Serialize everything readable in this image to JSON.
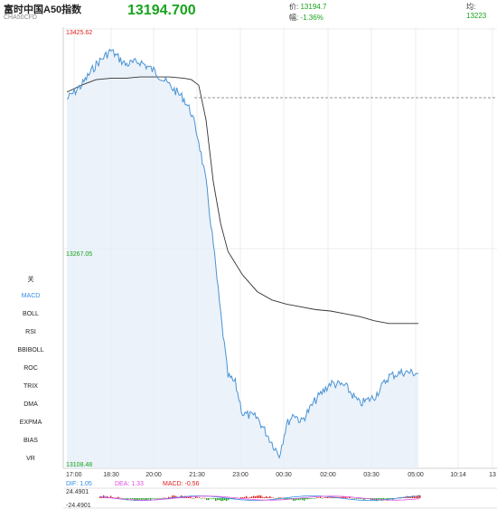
{
  "header": {
    "title": "富时中国A50指数",
    "code": "CHA50CFD",
    "last_price": "13194.700",
    "price_label": "价:",
    "price_value": "13194.7",
    "change_label": "幅:",
    "change_value": "-1.36%",
    "avg_label": "均:",
    "avg_value": "13223"
  },
  "colors": {
    "price_line": "#4a93d4",
    "avg_line": "#333333",
    "up": "#18a31d",
    "down": "#e02020",
    "dif": "#2f8de4",
    "dea": "#e04fe0"
  },
  "indicators": {
    "items": [
      {
        "label": "关",
        "active": false
      },
      {
        "label": "MACD",
        "active": true
      },
      {
        "label": "BOLL",
        "active": false
      },
      {
        "label": "RSI",
        "active": false
      },
      {
        "label": "BBIBOLL",
        "active": false
      },
      {
        "label": "ROC",
        "active": false
      },
      {
        "label": "TRIX",
        "active": false
      },
      {
        "label": "DMA",
        "active": false
      },
      {
        "label": "EXPMA",
        "active": false
      },
      {
        "label": "BIAS",
        "active": false
      },
      {
        "label": "VR",
        "active": false
      }
    ]
  },
  "chart_data": {
    "type": "line",
    "title": "",
    "y_ticks": [
      "13425.62",
      "13267.05",
      "13108.48"
    ],
    "ylim": [
      13108.48,
      13425.62
    ],
    "prev_close": 13376,
    "x_ticks": [
      "17:00",
      "18:30",
      "20:00",
      "21:30",
      "23:00",
      "00:30",
      "02:00",
      "03:30",
      "05:00",
      "10:14",
      "13"
    ],
    "series": [
      {
        "key": "price",
        "x": [
          "17:00",
          "17:30",
          "18:00",
          "18:30",
          "19:00",
          "19:30",
          "20:00",
          "20:30",
          "21:00",
          "21:15",
          "21:30",
          "21:45",
          "22:00",
          "22:15",
          "22:30",
          "22:45",
          "23:00",
          "23:30",
          "00:00",
          "00:15",
          "00:30",
          "00:45",
          "01:00",
          "01:30",
          "02:00",
          "02:30",
          "03:00",
          "03:30",
          "04:00",
          "04:30",
          "05:00"
        ],
        "values": [
          13375,
          13385,
          13400,
          13410,
          13400,
          13402,
          13395,
          13385,
          13375,
          13365,
          13345,
          13315,
          13270,
          13220,
          13175,
          13170,
          13148,
          13145,
          13127,
          13118,
          13140,
          13148,
          13142,
          13158,
          13170,
          13168,
          13155,
          13160,
          13175,
          13178,
          13177
        ]
      },
      {
        "key": "average",
        "x": [
          "17:00",
          "17:30",
          "18:00",
          "18:30",
          "19:00",
          "19:30",
          "20:00",
          "20:30",
          "21:00",
          "21:15",
          "21:30",
          "21:45",
          "22:00",
          "22:15",
          "22:30",
          "23:00",
          "23:30",
          "00:00",
          "00:30",
          "01:00",
          "01:30",
          "02:00",
          "02:30",
          "03:00",
          "03:30",
          "04:00",
          "04:30",
          "05:00"
        ],
        "values": [
          13380,
          13385,
          13389,
          13390,
          13390,
          13391,
          13391,
          13391,
          13390,
          13389,
          13385,
          13360,
          13315,
          13285,
          13265,
          13248,
          13236,
          13230,
          13227,
          13225,
          13223,
          13222,
          13220,
          13218,
          13215,
          13213,
          13213,
          13213
        ]
      }
    ],
    "macd": {
      "dif_label": "DIF:",
      "dif_value": "1.05",
      "dea_label": "DEA:",
      "dea_value": "1.33",
      "macd_label": "MACD:",
      "macd_value": "-0.56",
      "y_top": "24.4901",
      "y_bottom": "-24.4901"
    }
  }
}
